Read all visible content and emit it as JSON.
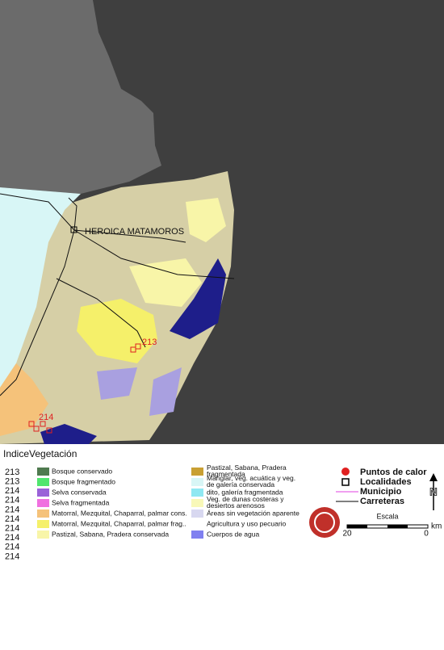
{
  "map": {
    "locality": "HEROICA  MATAMOROS",
    "hotspot_labels": [
      "213",
      "214"
    ]
  },
  "legend": {
    "index_header": "Indice",
    "vegetation_header": "Vegetación",
    "indices": [
      "213",
      "213",
      "214",
      "214",
      "214",
      "214",
      "214",
      "214",
      "214",
      "214"
    ],
    "vegetation_left": [
      {
        "label": "Bosque conservado",
        "color": "#4f7a4f"
      },
      {
        "label": "Bosque fragmentado",
        "color": "#50e66e"
      },
      {
        "label": "Selva conservada",
        "color": "#9a62d8"
      },
      {
        "label": "Selva fragmentada",
        "color": "#f070e0"
      },
      {
        "label": "Matorral, Mezquital, Chaparral, palmar cons.",
        "color": "#f5c27a"
      },
      {
        "label": "Matorral, Mezquital, Chaparral, palmar frag..",
        "color": "#f5f06a"
      },
      {
        "label": "Pastizal, Sabana, Pradera conservada",
        "color": "#f8f5a8"
      }
    ],
    "vegetation_right": [
      {
        "label": "Pastizal, Sabana, Pradera fragmentada",
        "color": "#c9a033"
      },
      {
        "label": "Manglar, veg. acuática y veg. de galería conservada",
        "color": "#d8f6f6"
      },
      {
        "label": "dito,  galería fragmentada",
        "color": "#8fe8f2"
      },
      {
        "label": "Veg. de dunas costeras y desiertos arenosos",
        "color": "#f8f8b8"
      },
      {
        "label": "Áreas sin vegetación aparente",
        "color": "#d8d8f0"
      },
      {
        "label": "Agricultura y uso pecuario",
        "color": "#ffffff"
      },
      {
        "label": "Cuerpos de agua",
        "color": "#8080f0"
      }
    ],
    "symbols": [
      "Puntos de calor",
      "Localidades",
      "Municipio",
      "Carreteras"
    ],
    "north": "N",
    "scale_title": "Escala",
    "scale_labels": [
      "20",
      "0"
    ],
    "scale_unit": "km"
  }
}
